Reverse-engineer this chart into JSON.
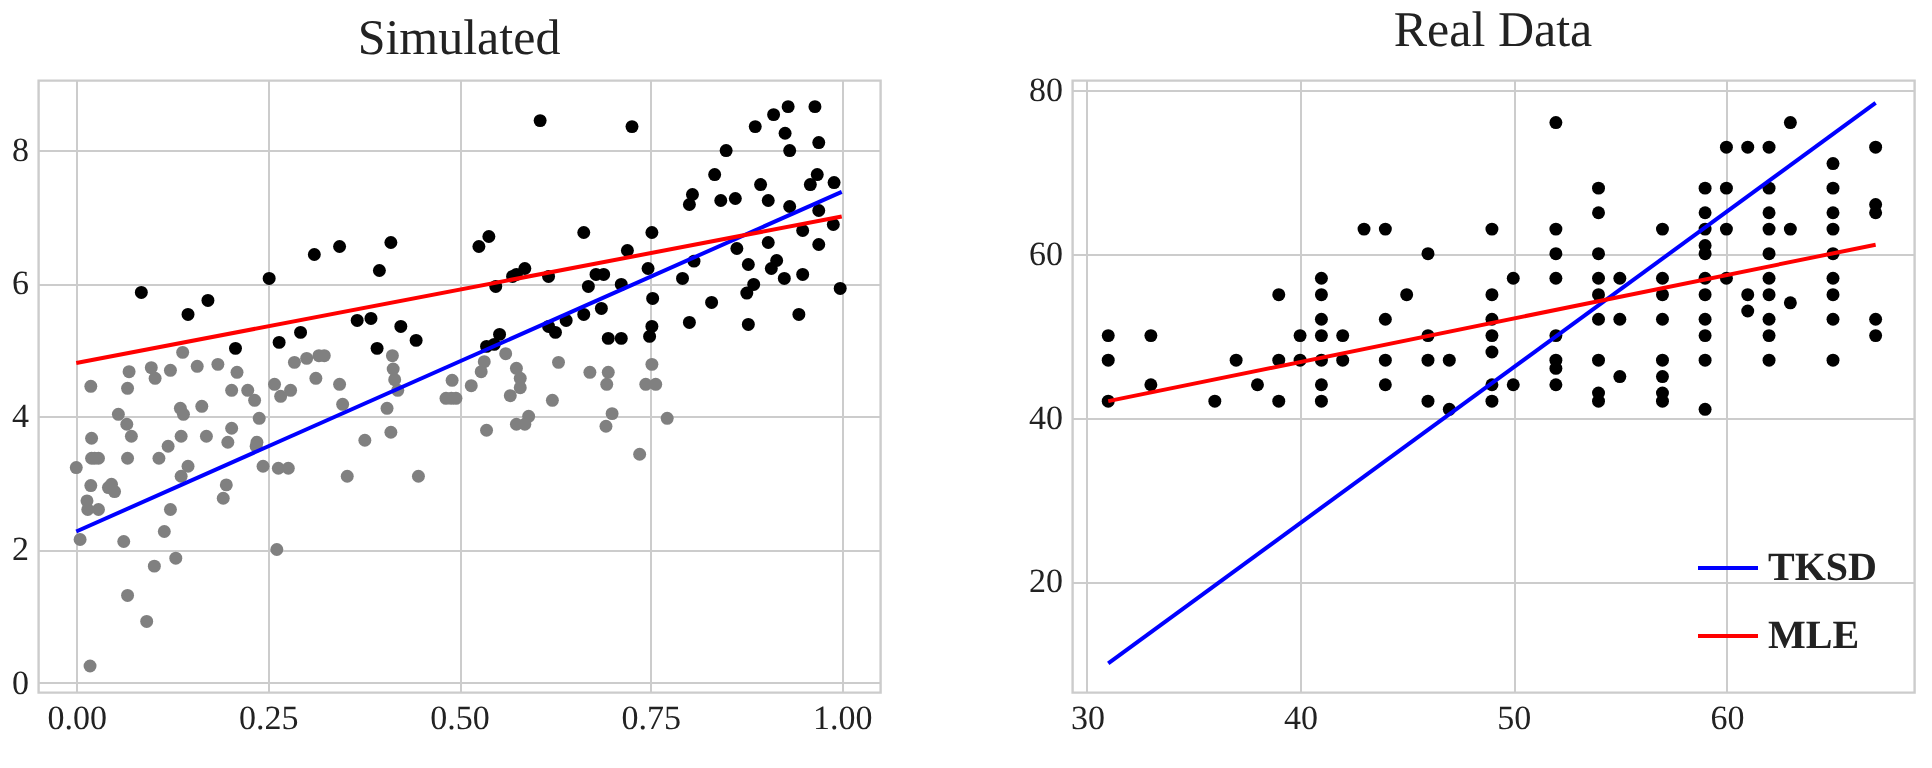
{
  "chart_data": [
    {
      "type": "scatter",
      "title": "Simulated",
      "xlim": [
        -0.05,
        1.05
      ],
      "ylim": [
        -0.14,
        9.05
      ],
      "xticks": [
        {
          "value": 0,
          "label": "0.00"
        },
        {
          "value": 0.25,
          "label": "0.25"
        },
        {
          "value": 0.5,
          "label": "0.50"
        },
        {
          "value": 0.75,
          "label": "0.75"
        },
        {
          "value": 1,
          "label": "1.00"
        }
      ],
      "yticks": [
        0,
        2,
        4,
        6,
        8
      ],
      "grid": true,
      "line_style": "solid",
      "series": [
        {
          "marker": "circle",
          "color": "#808080",
          "x": [
            0.0,
            0.005,
            0.014,
            0.019,
            0.02,
            0.019,
            0.02,
            0.024,
            0.029,
            0.018,
            0.015,
            0.029,
            0.042,
            0.046,
            0.05,
            0.055,
            0.062,
            0.066,
            0.067,
            0.067,
            0.069,
            0.072,
            0.067,
            0.092,
            0.098,
            0.103,
            0.102,
            0.108,
            0.115,
            0.12,
            0.123,
            0.123,
            0.13,
            0.136,
            0.139,
            0.137,
            0.14,
            0.137,
            0.146,
            0.158,
            0.164,
            0.17,
            0.185,
            0.196,
            0.192,
            0.198,
            0.203,
            0.203,
            0.21,
            0.224,
            0.233,
            0.239,
            0.236,
            0.235,
            0.244,
            0.259,
            0.262,
            0.264,
            0.267,
            0.277,
            0.28,
            0.285,
            0.301,
            0.313,
            0.317,
            0.324,
            0.344,
            0.348,
            0.354,
            0.377,
            0.406,
            0.411,
            0.413,
            0.414,
            0.416,
            0.42,
            0.447,
            0.483,
            0.49,
            0.491,
            0.496,
            0.516,
            0.529,
            0.533,
            0.536,
            0.561,
            0.567,
            0.575,
            0.575,
            0.58,
            0.58,
            0.586,
            0.591,
            0.622,
            0.63,
            0.671,
            0.695,
            0.693,
            0.692,
            0.7,
            0.736,
            0.744,
            0.752,
            0.757,
            0.772
          ],
          "values": [
            3.23,
            2.15,
            2.73,
            4.45,
            3.67,
            2.96,
            3.37,
            3.37,
            3.37,
            0.25,
            2.6,
            2.6,
            2.93,
            2.98,
            2.87,
            4.03,
            2.12,
            3.88,
            3.37,
            4.42,
            4.67,
            3.7,
            1.31,
            0.92,
            4.73,
            4.57,
            1.75,
            3.37,
            2.27,
            3.55,
            4.69,
            2.6,
            1.87,
            4.12,
            4.96,
            3.7,
            4.03,
            3.1,
            3.25,
            4.75,
            4.15,
            3.7,
            4.78,
            2.97,
            2.77,
            3.61,
            4.39,
            3.82,
            4.66,
            4.39,
            4.24,
            3.97,
            3.61,
            3.55,
            3.25,
            4.48,
            2.0,
            3.22,
            4.3,
            3.22,
            4.39,
            4.81,
            4.87,
            4.57,
            4.91,
            4.91,
            4.48,
            4.18,
            3.1,
            3.64,
            4.12,
            3.76,
            4.91,
            4.71,
            4.55,
            4.39,
            3.1,
            4.27,
            4.27,
            4.54,
            4.27,
            4.46,
            4.67,
            4.82,
            3.79,
            4.94,
            4.31,
            4.72,
            3.88,
            4.57,
            4.43,
            3.88,
            4.0,
            4.24,
            4.81,
            4.66,
            4.66,
            4.48,
            3.85,
            4.04,
            3.43,
            4.48,
            4.78,
            4.48,
            3.97
          ]
        },
        {
          "marker": "circle",
          "color": "#000000",
          "x": [
            0.085,
            0.146,
            0.172,
            0.208,
            0.252,
            0.265,
            0.293,
            0.311,
            0.344,
            0.367,
            0.385,
            0.396,
            0.393,
            0.411,
            0.424,
            0.444,
            0.526,
            0.539,
            0.536,
            0.546,
            0.553,
            0.548,
            0.57,
            0.575,
            0.586,
            0.606,
            0.617,
            0.617,
            0.626,
            0.64,
            0.663,
            0.663,
            0.669,
            0.679,
            0.686,
            0.689,
            0.695,
            0.712,
            0.712,
            0.72,
            0.726,
            0.747,
            0.752,
            0.753,
            0.752,
            0.749,
            0.792,
            0.801,
            0.801,
            0.805,
            0.807,
            0.83,
            0.834,
            0.842,
            0.849,
            0.861,
            0.863,
            0.878,
            0.876,
            0.885,
            0.878,
            0.887,
            0.894,
            0.904,
            0.904,
            0.908,
            0.911,
            0.915,
            0.925,
            0.926,
            0.93,
            0.932,
            0.932,
            0.944,
            0.949,
            0.949,
            0.959,
            0.965,
            0.97,
            0.968,
            0.97,
            0.97,
            0.989,
            0.99,
            0.998
          ],
          "values": [
            5.86,
            5.53,
            5.74,
            5.02,
            6.07,
            5.11,
            5.26,
            6.43,
            6.55,
            5.44,
            5.47,
            6.19,
            5.02,
            6.61,
            5.35,
            5.14,
            6.55,
            6.7,
            5.05,
            5.08,
            5.23,
            5.95,
            6.1,
            6.13,
            6.22,
            8.44,
            6.1,
            5.35,
            5.26,
            5.44,
            6.76,
            5.53,
            5.95,
            6.13,
            5.62,
            6.13,
            5.17,
            5.17,
            5.98,
            6.49,
            8.35,
            6.22,
            6.76,
            5.77,
            5.35,
            5.2,
            6.07,
            5.41,
            7.18,
            7.33,
            6.33,
            5.71,
            7.63,
            7.24,
            7.99,
            7.27,
            6.52,
            5.38,
            5.85,
            5.98,
            6.28,
            8.35,
            7.48,
            7.24,
            6.61,
            6.22,
            8.53,
            6.34,
            6.07,
            8.25,
            8.65,
            7.99,
            7.15,
            5.53,
            6.79,
            6.13,
            7.48,
            8.65,
            8.11,
            7.63,
            7.09,
            6.58,
            6.88,
            7.51,
            5.92
          ]
        },
        {
          "type": "line",
          "color": "#0000ff",
          "x": [
            0,
            1
          ],
          "values": [
            2.27,
            7.37
          ]
        },
        {
          "type": "line",
          "color": "#ff0000",
          "x": [
            0,
            1
          ],
          "values": [
            4.8,
            7.0
          ]
        }
      ]
    },
    {
      "type": "scatter",
      "title": "Real Data",
      "xlim": [
        29.3,
        68.8
      ],
      "ylim": [
        6.5,
        81.2
      ],
      "xticks": [
        30,
        40,
        50,
        60
      ],
      "yticks": [
        20,
        40,
        60,
        80
      ],
      "grid": true,
      "line_style": "solid",
      "legend": "bottom right",
      "series": [
        {
          "marker": "circle",
          "color": "#000000",
          "x": [
            31,
            31,
            31,
            33,
            33,
            36,
            37,
            38,
            39,
            39,
            39,
            40,
            40,
            41,
            41,
            41,
            41,
            41,
            41,
            41,
            42,
            42,
            43,
            44,
            44,
            44,
            44,
            45,
            46,
            46,
            46,
            46,
            47,
            47,
            49,
            49,
            49,
            49,
            49,
            49,
            49,
            50,
            50,
            52,
            52,
            52,
            52,
            52,
            52,
            52,
            52,
            54,
            54,
            54,
            54,
            54,
            54,
            54,
            54,
            54,
            55,
            55,
            55,
            57,
            57,
            57,
            57,
            57,
            57,
            57,
            57,
            59,
            59,
            59,
            59,
            59,
            59,
            59,
            59,
            59,
            59,
            59,
            60,
            60,
            60,
            60,
            61,
            61,
            61,
            62,
            62,
            62,
            62,
            62,
            62,
            62,
            62,
            62,
            62,
            63,
            63,
            63,
            65,
            65,
            65,
            65,
            65,
            65,
            65,
            65,
            65,
            67,
            67,
            67,
            67,
            67
          ],
          "values": [
            50,
            47,
            42,
            50,
            44,
            42,
            47,
            44,
            55,
            47,
            42,
            50,
            47,
            57,
            55,
            52,
            50,
            47,
            44,
            42,
            50,
            47,
            63,
            63,
            52,
            47,
            44,
            55,
            60,
            50,
            47,
            42,
            47,
            41,
            63,
            55,
            52,
            50,
            48,
            44,
            42,
            57,
            44,
            76,
            63,
            60,
            57,
            50,
            47,
            46,
            44,
            68,
            65,
            60,
            57,
            55,
            52,
            47,
            43,
            42,
            57,
            52,
            45,
            63,
            57,
            55,
            52,
            47,
            45,
            43,
            42,
            68,
            65,
            63,
            61,
            60,
            57,
            55,
            52,
            50,
            47,
            41,
            73,
            68,
            63,
            57,
            73,
            55,
            53,
            73,
            68,
            65,
            63,
            60,
            57,
            55,
            52,
            50,
            47,
            76,
            63,
            54,
            71,
            68,
            65,
            63,
            60,
            57,
            55,
            52,
            47,
            73,
            66,
            65,
            52,
            50
          ]
        },
        {
          "type": "line",
          "name": "TKSD",
          "color": "#0000ff",
          "x": [
            31,
            67
          ],
          "values": [
            10.0,
            78.4
          ]
        },
        {
          "type": "line",
          "name": "MLE",
          "color": "#ff0000",
          "x": [
            31,
            67
          ],
          "values": [
            42.0,
            61.1
          ]
        }
      ]
    }
  ]
}
